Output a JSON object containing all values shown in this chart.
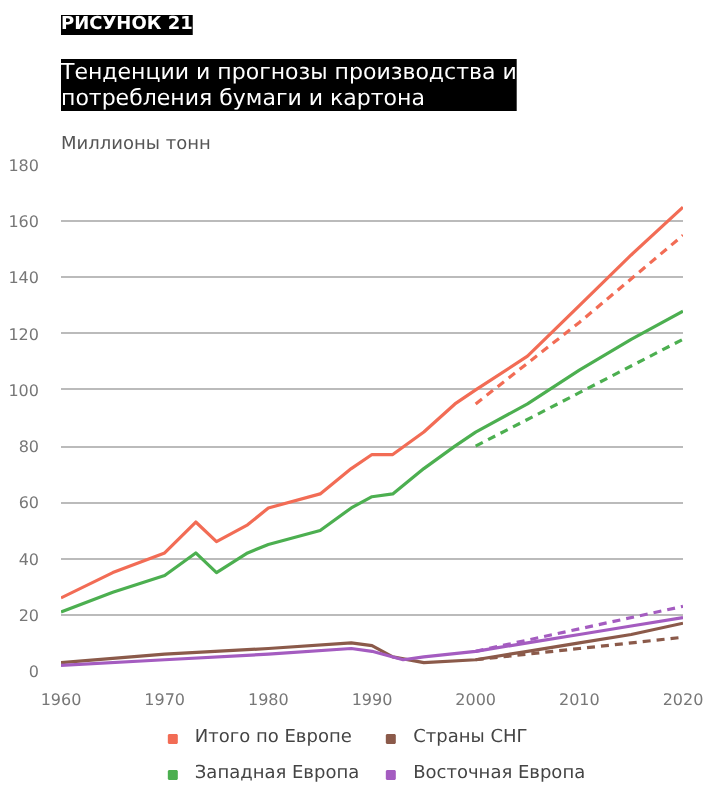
{
  "chart_data": {
    "type": "line",
    "title": "Тенденции и прогнозы производства и потребления бумаги и картона",
    "annotations": [
      "РИСУНОК 21"
    ],
    "ylabel": "Миллионы тонн",
    "xlim": [
      1960,
      2020
    ],
    "xticks": [
      1960,
      1970,
      1980,
      1990,
      2000,
      2010,
      2020
    ],
    "ylim": [
      0,
      180
    ],
    "yticks": [
      0,
      20,
      40,
      60,
      80,
      100,
      120,
      140,
      160,
      180
    ],
    "grid": "y",
    "legend": "bottom",
    "line_style": "solid",
    "marker": "none",
    "series": [
      {
        "name": "Итого по Европе",
        "color": "#f26c55",
        "x": [
          1960,
          1965,
          1970,
          1973,
          1975,
          1978,
          1980,
          1985,
          1988,
          1990,
          1992,
          1995,
          1998,
          2000,
          2005,
          2010,
          2015,
          2020
        ],
        "values": [
          26,
          35,
          42,
          53,
          46,
          52,
          58,
          63,
          72,
          77,
          77,
          85,
          95,
          100,
          112,
          130,
          148,
          165
        ]
      },
      {
        "name": "Западная Европа",
        "color": "#4caf50",
        "x": [
          1960,
          1965,
          1970,
          1973,
          1975,
          1978,
          1980,
          1985,
          1988,
          1990,
          1992,
          1995,
          1998,
          2000,
          2005,
          2010,
          2015,
          2020
        ],
        "values": [
          21,
          28,
          34,
          42,
          35,
          42,
          45,
          50,
          58,
          62,
          63,
          72,
          80,
          85,
          95,
          107,
          118,
          128
        ]
      },
      {
        "name": "Страны СНГ",
        "color": "#8b5a4a",
        "x": [
          1960,
          1970,
          1980,
          1988,
          1990,
          1992,
          1995,
          2000,
          2005,
          2010,
          2015,
          2020
        ],
        "values": [
          3,
          6,
          8,
          10,
          9,
          5,
          3,
          4,
          7,
          10,
          13,
          17
        ]
      },
      {
        "name": "Восточная Европа",
        "color": "#a45cc0",
        "x": [
          1960,
          1970,
          1980,
          1988,
          1990,
          1993,
          1995,
          2000,
          2005,
          2010,
          2015,
          2020
        ],
        "values": [
          2,
          4,
          6,
          8,
          7,
          4,
          5,
          7,
          10,
          13,
          16,
          19
        ]
      },
      {
        "color": "#f26c55",
        "line_style": "dashed",
        "x": [
          2000,
          2010,
          2020
        ],
        "values": [
          95,
          124,
          155
        ]
      },
      {
        "color": "#4caf50",
        "line_style": "dashed",
        "x": [
          2000,
          2010,
          2020
        ],
        "values": [
          80,
          99,
          118
        ]
      },
      {
        "color": "#8b5a4a",
        "line_style": "dashed",
        "x": [
          2000,
          2010,
          2020
        ],
        "values": [
          4,
          8,
          12
        ]
      },
      {
        "color": "#a45cc0",
        "line_style": "dashed",
        "x": [
          2000,
          2010,
          2020
        ],
        "values": [
          7,
          15,
          23
        ]
      }
    ]
  }
}
